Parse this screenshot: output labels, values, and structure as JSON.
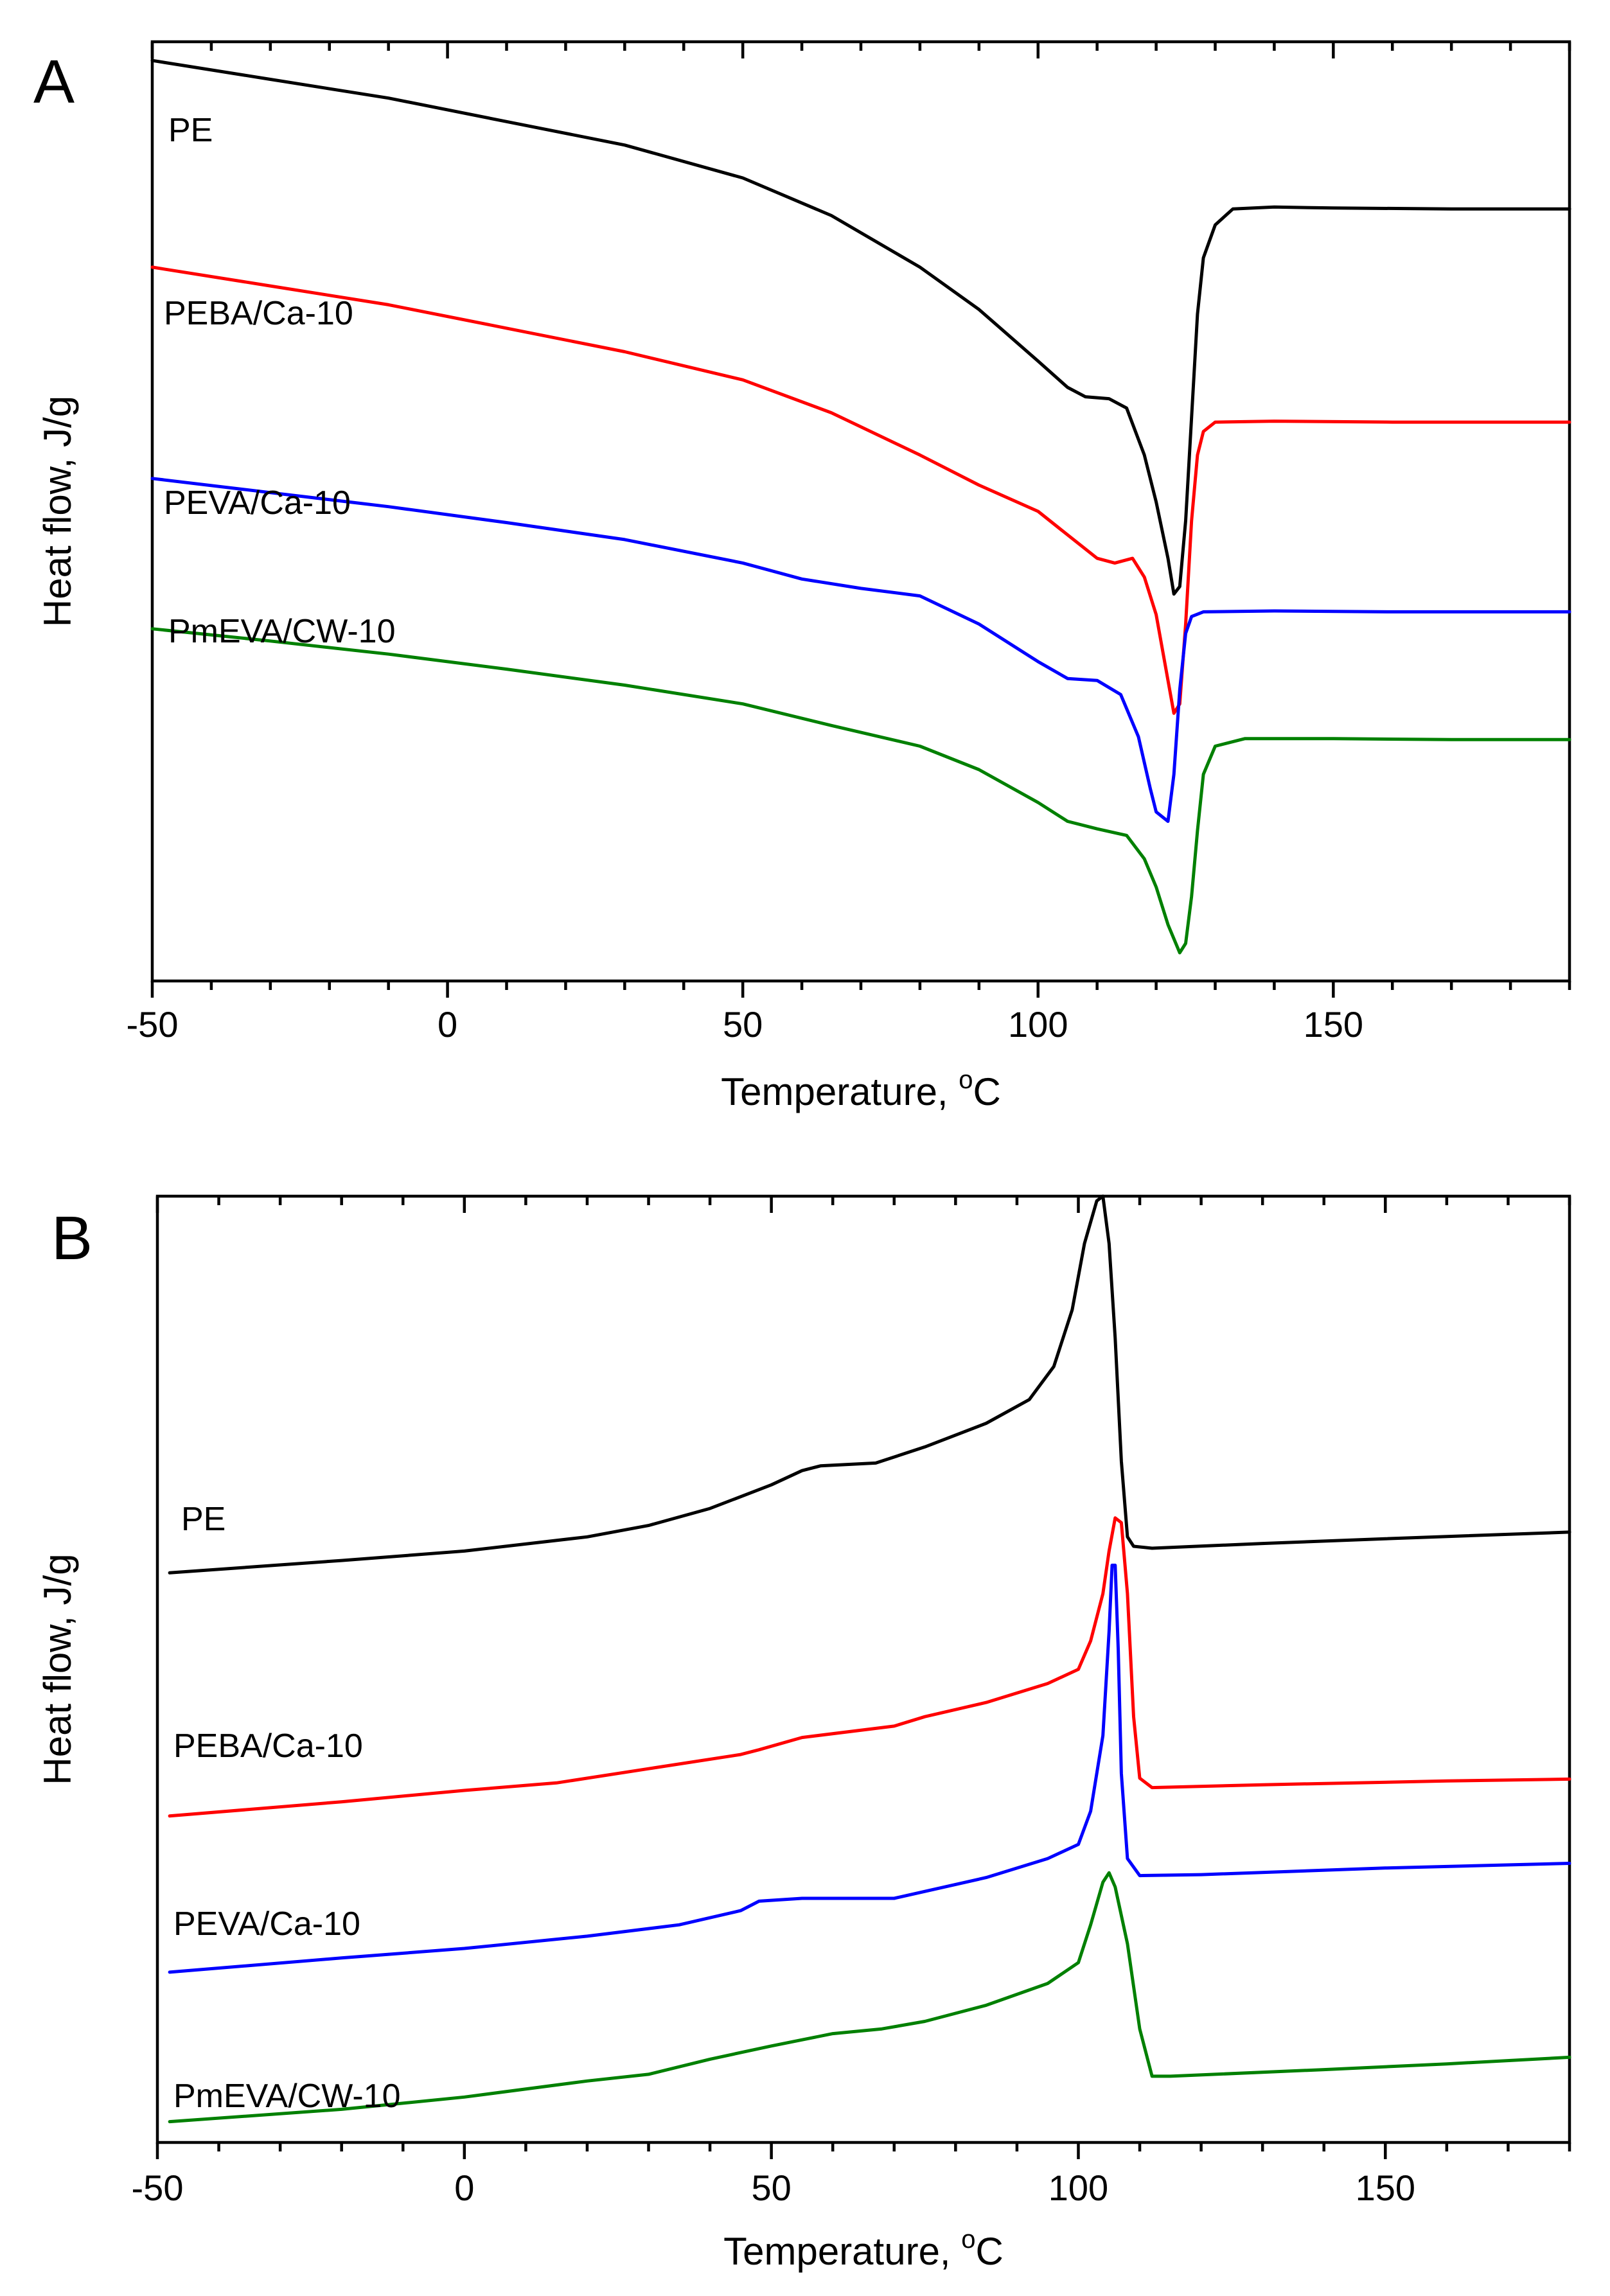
{
  "chart_data": [
    {
      "type": "line",
      "panel_label": "A",
      "xlabel": "Temperature, °C",
      "xlabel_main": "Temperature, ",
      "xlabel_deg": "o",
      "xlabel_unit": "C",
      "ylabel": "Heat flow, J/g",
      "xlim": [
        -50,
        190
      ],
      "ylim": [
        0,
        10
      ],
      "xticks": [
        -50,
        0,
        50,
        100,
        150
      ],
      "xtick_labels": [
        "-50",
        "0",
        "50",
        "100",
        "150"
      ],
      "yticks_shown": false,
      "series": [
        {
          "name": "PE",
          "color": "#000000",
          "points": [
            [
              -50,
              9.8
            ],
            [
              -30,
              9.6
            ],
            [
              -10,
              9.4
            ],
            [
              10,
              9.15
            ],
            [
              30,
              8.9
            ],
            [
              50,
              8.55
            ],
            [
              65,
              8.15
            ],
            [
              80,
              7.6
            ],
            [
              90,
              7.15
            ],
            [
              100,
              6.6
            ],
            [
              105,
              6.32
            ],
            [
              108,
              6.22
            ],
            [
              112,
              6.2
            ],
            [
              115,
              6.1
            ],
            [
              118,
              5.6
            ],
            [
              120,
              5.1
            ],
            [
              122,
              4.5
            ],
            [
              123,
              4.12
            ],
            [
              124,
              4.2
            ],
            [
              125,
              4.9
            ],
            [
              126,
              6.0
            ],
            [
              127,
              7.1
            ],
            [
              128,
              7.7
            ],
            [
              130,
              8.05
            ],
            [
              133,
              8.22
            ],
            [
              140,
              8.24
            ],
            [
              150,
              8.23
            ],
            [
              170,
              8.22
            ],
            [
              190,
              8.22
            ]
          ]
        },
        {
          "name": "PEBA/Ca-10",
          "color": "#ff0000",
          "points": [
            [
              -50,
              7.6
            ],
            [
              -30,
              7.4
            ],
            [
              -10,
              7.2
            ],
            [
              10,
              6.95
            ],
            [
              30,
              6.7
            ],
            [
              50,
              6.4
            ],
            [
              65,
              6.05
            ],
            [
              80,
              5.6
            ],
            [
              90,
              5.28
            ],
            [
              100,
              5.0
            ],
            [
              105,
              4.75
            ],
            [
              110,
              4.5
            ],
            [
              113,
              4.45
            ],
            [
              116,
              4.5
            ],
            [
              118,
              4.3
            ],
            [
              120,
              3.9
            ],
            [
              122,
              3.2
            ],
            [
              123,
              2.85
            ],
            [
              124,
              2.95
            ],
            [
              125,
              3.8
            ],
            [
              126,
              4.9
            ],
            [
              127,
              5.6
            ],
            [
              128,
              5.85
            ],
            [
              130,
              5.95
            ],
            [
              140,
              5.96
            ],
            [
              160,
              5.95
            ],
            [
              190,
              5.95
            ]
          ]
        },
        {
          "name": "PEVA/Ca-10",
          "color": "#0000ff",
          "points": [
            [
              -50,
              5.35
            ],
            [
              -30,
              5.2
            ],
            [
              -10,
              5.05
            ],
            [
              10,
              4.88
            ],
            [
              30,
              4.7
            ],
            [
              50,
              4.45
            ],
            [
              60,
              4.28
            ],
            [
              70,
              4.18
            ],
            [
              80,
              4.1
            ],
            [
              90,
              3.8
            ],
            [
              100,
              3.4
            ],
            [
              105,
              3.22
            ],
            [
              110,
              3.2
            ],
            [
              114,
              3.05
            ],
            [
              117,
              2.6
            ],
            [
              119,
              2.05
            ],
            [
              120,
              1.8
            ],
            [
              121,
              1.75
            ],
            [
              122,
              1.7
            ],
            [
              123,
              2.2
            ],
            [
              124,
              3.1
            ],
            [
              125,
              3.7
            ],
            [
              126,
              3.88
            ],
            [
              128,
              3.93
            ],
            [
              140,
              3.94
            ],
            [
              160,
              3.93
            ],
            [
              190,
              3.93
            ]
          ]
        },
        {
          "name": "PmEVA/CW-10",
          "color": "#008000",
          "points": [
            [
              -50,
              3.75
            ],
            [
              -30,
              3.62
            ],
            [
              -10,
              3.48
            ],
            [
              10,
              3.32
            ],
            [
              30,
              3.15
            ],
            [
              50,
              2.95
            ],
            [
              65,
              2.72
            ],
            [
              80,
              2.5
            ],
            [
              90,
              2.25
            ],
            [
              100,
              1.9
            ],
            [
              105,
              1.7
            ],
            [
              110,
              1.62
            ],
            [
              115,
              1.55
            ],
            [
              118,
              1.3
            ],
            [
              120,
              1.0
            ],
            [
              122,
              0.6
            ],
            [
              124,
              0.3
            ],
            [
              125,
              0.4
            ],
            [
              126,
              0.9
            ],
            [
              127,
              1.6
            ],
            [
              128,
              2.2
            ],
            [
              130,
              2.5
            ],
            [
              135,
              2.58
            ],
            [
              150,
              2.58
            ],
            [
              170,
              2.57
            ],
            [
              190,
              2.57
            ]
          ]
        }
      ]
    },
    {
      "type": "line",
      "panel_label": "B",
      "xlabel": "Temperature, °C",
      "xlabel_main": "Temperature, ",
      "xlabel_deg": "o",
      "xlabel_unit": "C",
      "ylabel": "Heat flow, J/g",
      "xlim": [
        -50,
        180
      ],
      "ylim": [
        0,
        10
      ],
      "xticks": [
        -50,
        0,
        50,
        100,
        150
      ],
      "xtick_labels": [
        "-50",
        "0",
        "50",
        "100",
        "150"
      ],
      "yticks_shown": false,
      "series": [
        {
          "name": "PE",
          "color": "#000000",
          "points": [
            [
              -48,
              6.02
            ],
            [
              -20,
              6.15
            ],
            [
              0,
              6.25
            ],
            [
              20,
              6.4
            ],
            [
              30,
              6.52
            ],
            [
              40,
              6.7
            ],
            [
              50,
              6.95
            ],
            [
              55,
              7.1
            ],
            [
              58,
              7.15
            ],
            [
              67,
              7.18
            ],
            [
              75,
              7.35
            ],
            [
              85,
              7.6
            ],
            [
              92,
              7.85
            ],
            [
              96,
              8.2
            ],
            [
              99,
              8.8
            ],
            [
              101,
              9.5
            ],
            [
              103,
              9.95
            ],
            [
              104,
              10.0
            ],
            [
              105,
              9.5
            ],
            [
              106,
              8.5
            ],
            [
              107,
              7.2
            ],
            [
              108,
              6.4
            ],
            [
              109,
              6.3
            ],
            [
              112,
              6.28
            ],
            [
              130,
              6.33
            ],
            [
              150,
              6.38
            ],
            [
              180,
              6.45
            ]
          ]
        },
        {
          "name": "PEBA/Ca-10",
          "color": "#ff0000",
          "points": [
            [
              -48,
              3.45
            ],
            [
              -20,
              3.6
            ],
            [
              0,
              3.72
            ],
            [
              15,
              3.8
            ],
            [
              30,
              3.95
            ],
            [
              45,
              4.1
            ],
            [
              48,
              4.15
            ],
            [
              55,
              4.28
            ],
            [
              70,
              4.4
            ],
            [
              75,
              4.5
            ],
            [
              85,
              4.65
            ],
            [
              95,
              4.85
            ],
            [
              100,
              5.0
            ],
            [
              102,
              5.3
            ],
            [
              104,
              5.8
            ],
            [
              105,
              6.25
            ],
            [
              106,
              6.6
            ],
            [
              107,
              6.55
            ],
            [
              108,
              5.8
            ],
            [
              109,
              4.5
            ],
            [
              110,
              3.85
            ],
            [
              112,
              3.75
            ],
            [
              130,
              3.78
            ],
            [
              160,
              3.82
            ],
            [
              180,
              3.84
            ]
          ]
        },
        {
          "name": "PEVA/Ca-10",
          "color": "#0000ff",
          "points": [
            [
              -48,
              1.8
            ],
            [
              -20,
              1.95
            ],
            [
              0,
              2.05
            ],
            [
              20,
              2.18
            ],
            [
              35,
              2.3
            ],
            [
              45,
              2.45
            ],
            [
              48,
              2.55
            ],
            [
              55,
              2.58
            ],
            [
              70,
              2.58
            ],
            [
              85,
              2.8
            ],
            [
              95,
              3.0
            ],
            [
              100,
              3.15
            ],
            [
              102,
              3.5
            ],
            [
              104,
              4.3
            ],
            [
              105,
              5.4
            ],
            [
              105.5,
              6.1
            ],
            [
              106,
              6.1
            ],
            [
              106.5,
              5.2
            ],
            [
              107,
              3.9
            ],
            [
              108,
              3.0
            ],
            [
              110,
              2.82
            ],
            [
              120,
              2.83
            ],
            [
              150,
              2.9
            ],
            [
              180,
              2.95
            ]
          ]
        },
        {
          "name": "PmEVA/CW-10",
          "color": "#008000",
          "points": [
            [
              -48,
              0.22
            ],
            [
              -20,
              0.35
            ],
            [
              0,
              0.48
            ],
            [
              20,
              0.65
            ],
            [
              30,
              0.72
            ],
            [
              40,
              0.88
            ],
            [
              50,
              1.02
            ],
            [
              60,
              1.15
            ],
            [
              68,
              1.2
            ],
            [
              75,
              1.28
            ],
            [
              85,
              1.45
            ],
            [
              95,
              1.68
            ],
            [
              100,
              1.9
            ],
            [
              102,
              2.3
            ],
            [
              104,
              2.75
            ],
            [
              105,
              2.85
            ],
            [
              106,
              2.7
            ],
            [
              108,
              2.1
            ],
            [
              110,
              1.2
            ],
            [
              112,
              0.7
            ],
            [
              115,
              0.7
            ],
            [
              140,
              0.77
            ],
            [
              160,
              0.83
            ],
            [
              180,
              0.9
            ]
          ]
        }
      ]
    }
  ]
}
